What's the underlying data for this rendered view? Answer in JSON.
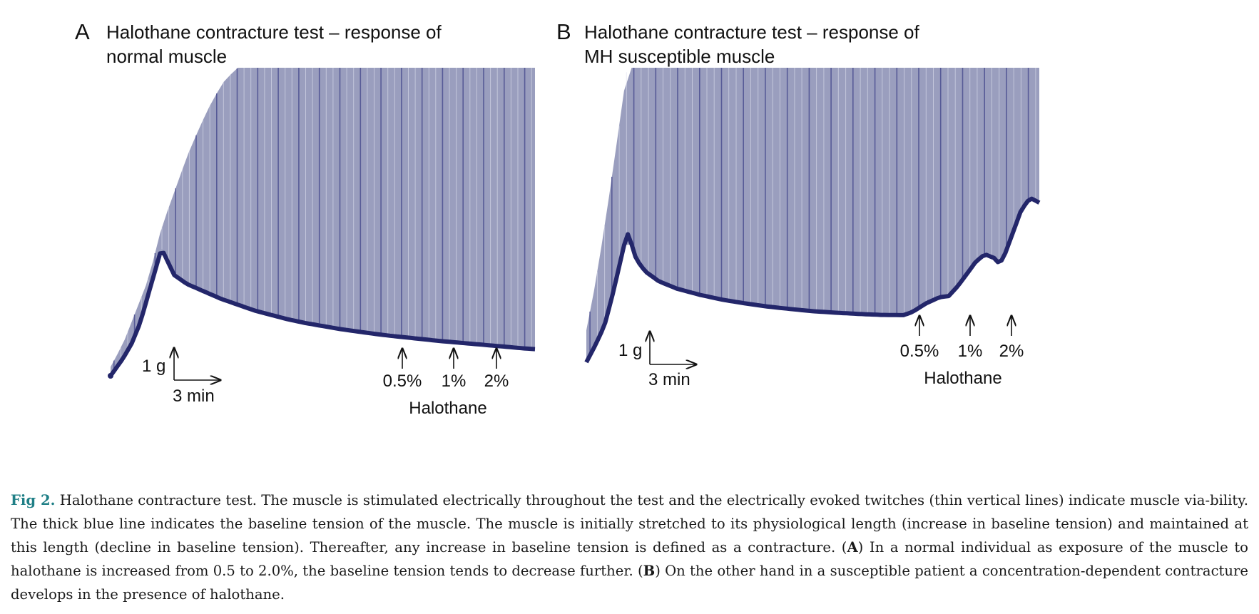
{
  "chart_data": [
    {
      "type": "line",
      "panel_letter": "A",
      "title_lines": [
        "Halothane contracture test – response of",
        "normal muscle"
      ],
      "scale_bar": {
        "y_label": "1 g",
        "x_label": "3 min"
      },
      "annotations": {
        "arrows": [
          "0.5%",
          "1%",
          "2%"
        ],
        "group_label": "Halothane"
      },
      "baseline": {
        "x": [
          0,
          3,
          5,
          7,
          9,
          12,
          15,
          18,
          22,
          26,
          30,
          34,
          38,
          42,
          46,
          50,
          54,
          58,
          62,
          66,
          70,
          74,
          78,
          82,
          86,
          90,
          94,
          97,
          100
        ],
        "y": [
          0.0,
          0.6,
          1.1,
          1.8,
          2.8,
          4.3,
          3.4,
          3.1,
          2.85,
          2.6,
          2.4,
          2.2,
          2.05,
          1.9,
          1.78,
          1.68,
          1.58,
          1.5,
          1.42,
          1.35,
          1.29,
          1.23,
          1.17,
          1.12,
          1.07,
          1.02,
          0.97,
          0.93,
          0.9
        ]
      },
      "twitch_envelope": {
        "x": [
          0,
          3,
          6,
          9,
          12,
          15,
          18,
          21,
          24,
          27,
          30,
          35,
          40,
          46,
          52,
          56,
          60,
          64,
          68,
          72,
          76,
          80,
          84,
          88,
          92,
          96,
          100
        ],
        "y": [
          0.3,
          1.1,
          2.2,
          3.3,
          5.0,
          6.2,
          7.4,
          8.4,
          9.3,
          10.0,
          10.4,
          10.4,
          10.4,
          10.4,
          10.4,
          10.4,
          10.4,
          10.4,
          10.4,
          10.4,
          10.4,
          10.4,
          10.4,
          10.4,
          10.4,
          10.4,
          10.4
        ]
      },
      "xlim": [
        0,
        100
      ],
      "ylim": [
        0,
        10.4
      ]
    },
    {
      "type": "line",
      "panel_letter": "B",
      "title_lines": [
        "Halothane contracture test – response of",
        "MH susceptible muscle"
      ],
      "scale_bar": {
        "y_label": "1 g",
        "x_label": "3 min"
      },
      "annotations": {
        "arrows": [
          "0.5%",
          "1%",
          "2%"
        ],
        "group_label": "Halothane"
      },
      "baseline": {
        "x": [
          0,
          2,
          4,
          6,
          8,
          9,
          10,
          11,
          13,
          16,
          20,
          25,
          30,
          35,
          40,
          45,
          50,
          55,
          60,
          65,
          70,
          72,
          75,
          78,
          80,
          82,
          84,
          86,
          88,
          90,
          91,
          92,
          94,
          96,
          98,
          100
        ],
        "y": [
          0.0,
          0.7,
          1.5,
          2.9,
          4.5,
          5.3,
          4.8,
          4.2,
          3.7,
          3.3,
          3.0,
          2.75,
          2.55,
          2.4,
          2.27,
          2.17,
          2.08,
          2.02,
          1.97,
          1.93,
          1.92,
          2.05,
          2.4,
          2.65,
          2.7,
          3.1,
          3.6,
          4.1,
          4.4,
          4.25,
          4.05,
          4.2,
          5.2,
          6.2,
          6.7,
          6.5
        ]
      },
      "twitch_envelope": {
        "x": [
          0,
          2,
          4,
          6,
          8,
          9,
          10,
          20,
          40,
          60,
          80,
          100
        ],
        "y": [
          1.3,
          3.2,
          5.5,
          8.0,
          10.6,
          12.0,
          12.0,
          12.0,
          12.0,
          12.0,
          12.0,
          12.0
        ]
      },
      "xlim": [
        0,
        100
      ],
      "ylim": [
        0,
        12.0
      ]
    }
  ],
  "caption": {
    "fig_label": "Fig 2.",
    "text_1": " Halothane contracture test. The muscle is stimulated electrically throughout the test and the electrically evoked twitches (thin vertical lines) indicate muscle via-bility. The thick blue line indicates the baseline tension of the muscle. The muscle is initially stretched to its physiological length (increase in baseline tension) and maintained at this length (decline in baseline tension). Thereafter, any increase in baseline tension is defined as a contracture. (",
    "ref_a": "A",
    "text_2": ") In a normal individual as exposure of the muscle to halothane is increased from 0.5 to 2.0%, the baseline tension tends to decrease further. (",
    "ref_b": "B",
    "text_3": ") On the other hand in a susceptible patient a concentration-dependent contracture develops in the presence of halothane."
  },
  "colors": {
    "twitch_fill": "#9a9ebe",
    "twitch_line": "#4b4f91",
    "twitch_highlight": "#dfe1ee",
    "baseline": "#23266a",
    "caption_label": "#1f7f86"
  }
}
